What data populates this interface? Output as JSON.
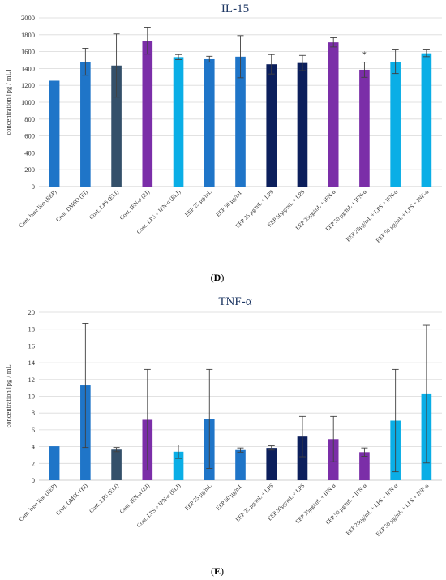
{
  "colors": {
    "blue": "#1f75c8",
    "slate": "#34506a",
    "purple": "#7b2ea8",
    "cyan": "#0aaee6",
    "navy": "#0c1f5c"
  },
  "chart_data": [
    {
      "panel": "D",
      "type": "bar",
      "title": "IL-15",
      "ylabel": "concentration [pg / mL]",
      "ylim": [
        0,
        2000
      ],
      "yticks": [
        0,
        200,
        400,
        600,
        800,
        1000,
        1200,
        1400,
        1600,
        1800,
        2000
      ],
      "grid": true,
      "legend": "none",
      "categories": [
        "Cont. base line (EEP)",
        "Cont. DMSO (EI)",
        "Cont. LPS (ELI)",
        "Cont. IFN-α (EI)",
        "Cont. LPS + IFN-α (ELI)",
        "EEP 25 µg/mL",
        "EEP 50 µg/mL",
        "EEP 25 µg/mL + LPS",
        "EEP 50µg/mL + LPS",
        "EEP 25µg/mL + IFN-α",
        "EEP 50 µg/mL + IFN-α",
        "EEP 25µg/mL + LPS + IFN-α",
        "EEP 50 µg/mL + LPS + INF-α"
      ],
      "values": [
        1255,
        1480,
        1435,
        1730,
        1535,
        1510,
        1540,
        1450,
        1465,
        1710,
        1385,
        1480,
        1580
      ],
      "errors": [
        0,
        160,
        375,
        160,
        30,
        35,
        250,
        115,
        90,
        55,
        90,
        140,
        40
      ],
      "bar_colors": [
        "blue",
        "blue",
        "slate",
        "purple",
        "cyan",
        "blue",
        "blue",
        "navy",
        "navy",
        "purple",
        "purple",
        "cyan",
        "cyan"
      ],
      "annotations": [
        {
          "category_index": 10,
          "text": "*"
        }
      ]
    },
    {
      "panel": "E",
      "type": "bar",
      "title": "TNF-α",
      "ylabel": "concentration [pg / mL]",
      "ylim": [
        0,
        20
      ],
      "yticks": [
        0,
        2,
        4,
        6,
        8,
        10,
        12,
        14,
        16,
        18,
        20
      ],
      "grid": true,
      "legend": "none",
      "categories": [
        "Cont. base line (EEP)",
        "Cont. DMSO (EI)",
        "Cont. LPS (ELI)",
        "Cont. IFN-α (EI)",
        "Cont. LPS + IFN-α (ELI)",
        "EEP 25 µg/mL",
        "EEP 50 µg/mL",
        "EEP 25 µg/mL + LPS",
        "EEP 50µg/mL + LPS",
        "EEP 25µg/mL + IFN-α",
        "EEP 50 µg/mL + IFN-α",
        "EEP 25µg/mL + LPS + IFN-α",
        "EEP 50 µg/mL + LPS + INF-α"
      ],
      "values": [
        4.05,
        11.3,
        3.65,
        7.2,
        3.4,
        7.3,
        3.6,
        3.85,
        5.2,
        4.9,
        3.35,
        7.1,
        10.25
      ],
      "errors": [
        0,
        7.4,
        0.25,
        6.0,
        0.8,
        5.9,
        0.25,
        0.25,
        2.4,
        2.7,
        0.5,
        6.1,
        8.2
      ],
      "bar_colors": [
        "blue",
        "blue",
        "slate",
        "purple",
        "cyan",
        "blue",
        "blue",
        "navy",
        "navy",
        "purple",
        "purple",
        "cyan",
        "cyan"
      ],
      "annotations": []
    }
  ]
}
